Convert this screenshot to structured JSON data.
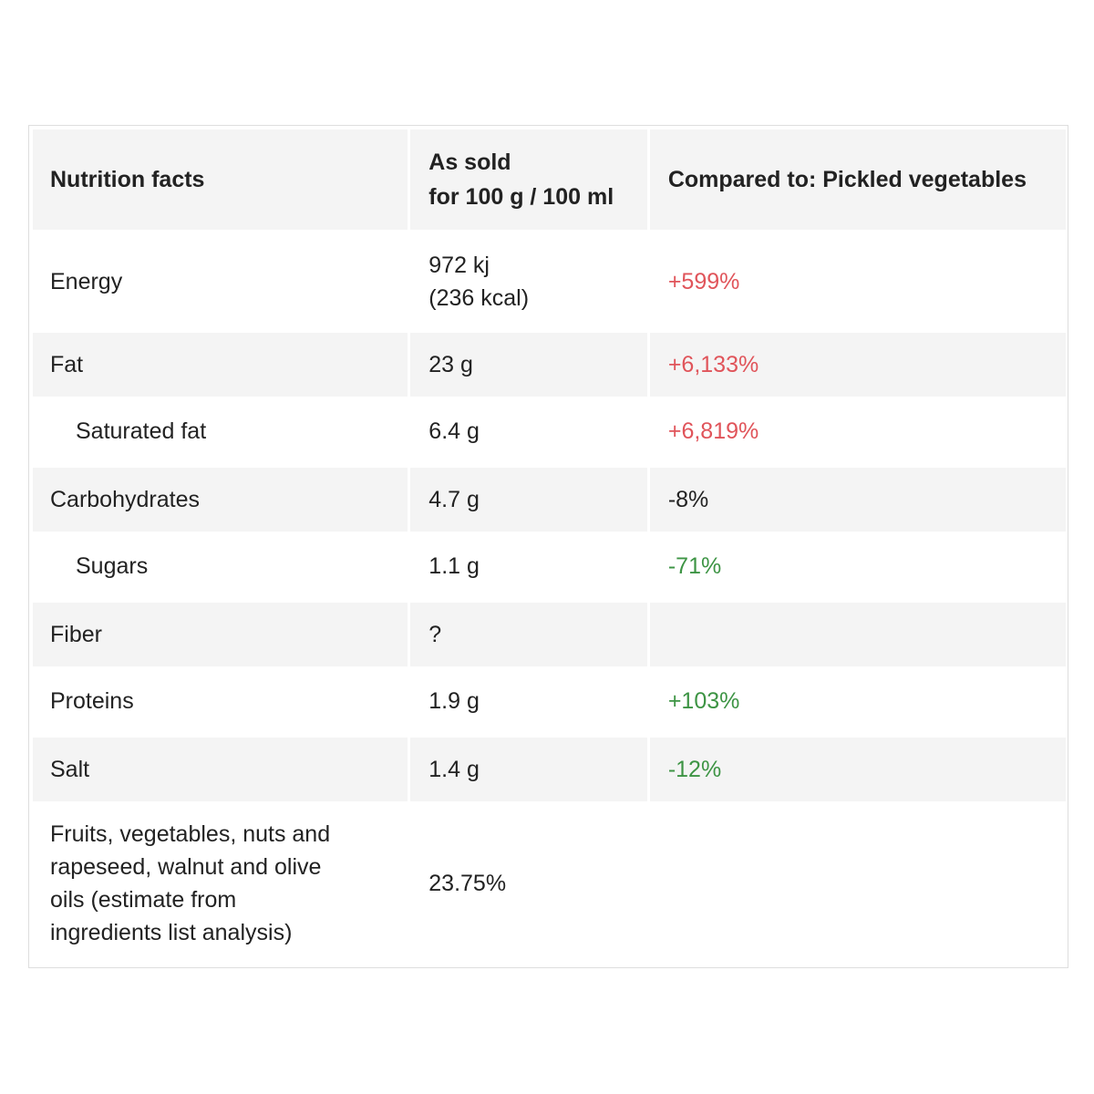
{
  "header": {
    "col1": "Nutrition facts",
    "col2_line1": "As sold",
    "col2_line2": "for 100 g / 100 ml",
    "col3": "Compared to: Pickled vegetables"
  },
  "rows": [
    {
      "name": "Energy",
      "value_line1": "972 kj",
      "value_line2": "(236 kcal)",
      "compare": "+599%",
      "compare_color": "#e0545a"
    },
    {
      "name": "Fat",
      "value": "23 g",
      "compare": "+6,133%",
      "compare_color": "#e0545a"
    },
    {
      "name": "Saturated fat",
      "value": "6.4 g",
      "compare": "+6,819%",
      "compare_color": "#e0545a"
    },
    {
      "name": "Carbohydrates",
      "value": "4.7 g",
      "compare": "-8%",
      "compare_color": "#222222"
    },
    {
      "name": "Sugars",
      "value": "1.1 g",
      "compare": "-71%",
      "compare_color": "#3d9444"
    },
    {
      "name": "Fiber",
      "value": "?",
      "compare": ""
    },
    {
      "name": "Proteins",
      "value": "1.9 g",
      "compare": "+103%",
      "compare_color": "#3d9444"
    },
    {
      "name": "Salt",
      "value": "1.4 g",
      "compare": "-12%",
      "compare_color": "#3d9444"
    },
    {
      "name_line1": "Fruits, vegetables, nuts and",
      "name_line2": "rapeseed, walnut and olive",
      "name_line3": "oils (estimate from",
      "name_line4": "ingredients list analysis)",
      "value": "23.75%",
      "compare": ""
    }
  ]
}
